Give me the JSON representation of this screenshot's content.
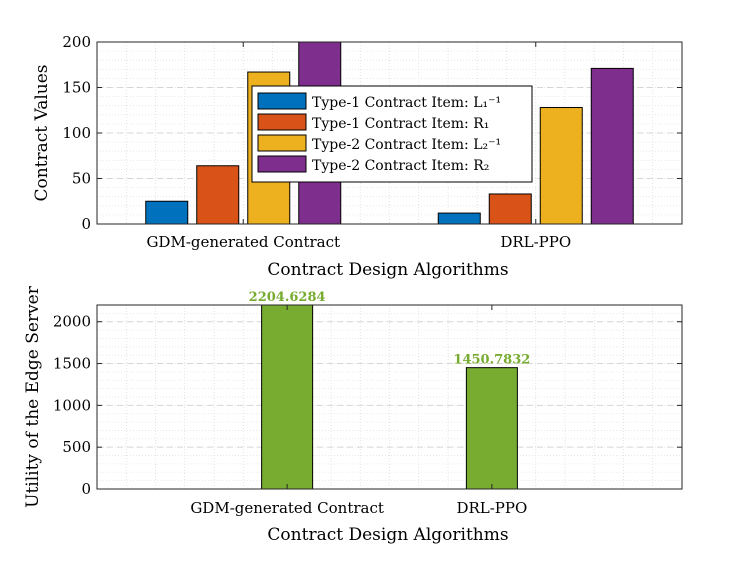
{
  "chart_data": [
    {
      "type": "bar",
      "categories": [
        "GDM-generated Contract",
        "DRL-PPO"
      ],
      "series": [
        {
          "name": "Type-1 Contract Item: L₁⁻¹",
          "values": [
            25,
            12
          ],
          "color": "#0072BD"
        },
        {
          "name": "Type-1 Contract Item: R₁",
          "values": [
            64,
            33
          ],
          "color": "#D95319"
        },
        {
          "name": "Type-2 Contract Item: L₂⁻¹",
          "values": [
            167,
            128
          ],
          "color": "#EDB120"
        },
        {
          "name": "Type-2 Contract Item: R₂",
          "values": [
            200,
            171
          ],
          "color": "#7E2F8E"
        }
      ],
      "title": "",
      "xlabel": "Contract Design Algorithms",
      "ylabel": "Contract Values",
      "ylim": [
        0,
        200
      ],
      "yticks": [
        0,
        50,
        100,
        150,
        200
      ],
      "grid": true,
      "legend_position": "center"
    },
    {
      "type": "bar",
      "categories": [
        "GDM-generated Contract",
        "DRL-PPO"
      ],
      "values": [
        2204.6284,
        1450.7832
      ],
      "data_labels": [
        "2204.6284",
        "1450.7832"
      ],
      "color": "#77AC30",
      "label_color": "#77AC30",
      "title": "",
      "xlabel": "Contract Design Algorithms",
      "ylabel": "Utility of the Edge Server",
      "ylim": [
        0,
        2200
      ],
      "yticks": [
        0,
        500,
        1000,
        1500,
        2000
      ],
      "grid": true
    }
  ]
}
